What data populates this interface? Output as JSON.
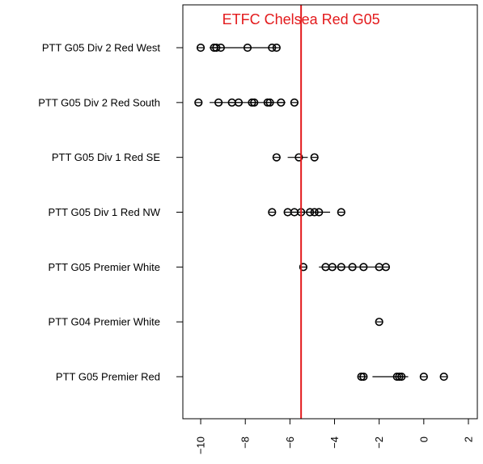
{
  "chart_data": {
    "type": "scatter",
    "title": "",
    "xlabel": "",
    "ylabel": "",
    "xlim": [
      -10.8,
      2.4
    ],
    "x_ticks": [
      -10,
      -8,
      -6,
      -4,
      -2,
      0,
      2
    ],
    "x_tick_labels": [
      "−10",
      "−8",
      "−6",
      "−4",
      "−2",
      "0",
      "2"
    ],
    "grid": false,
    "categories": [
      "PTT G05 Div 2 Red West",
      "PTT G05 Div 2 Red South",
      "PTT G05 Div 1 Red SE",
      "PTT G05 Div 1 Red NW",
      "PTT G05 Premier White",
      "PTT G04 Premier White",
      "PTT G05 Premier Red"
    ],
    "series": [
      {
        "category": "PTT G05 Div 2 Red West",
        "points": [
          -10.0,
          -9.4,
          -9.3,
          -9.1,
          -7.9,
          -6.8,
          -6.6
        ],
        "interval": [
          -9.6,
          -6.9
        ]
      },
      {
        "category": "PTT G05 Div 2 Red South",
        "points": [
          -10.1,
          -9.2,
          -8.6,
          -8.3,
          -7.7,
          -7.6,
          -7.0,
          -6.9,
          -6.4,
          -5.8
        ],
        "interval": [
          -9.6,
          -6.2
        ]
      },
      {
        "category": "PTT G05 Div 1 Red SE",
        "points": [
          -6.6,
          -5.6,
          -4.9
        ],
        "interval": [
          -6.1,
          -5.2
        ]
      },
      {
        "category": "PTT G05 Div 1 Red NW",
        "points": [
          -6.8,
          -6.1,
          -5.8,
          -5.5,
          -5.1,
          -4.9,
          -4.7,
          -3.7
        ],
        "interval": [
          -6.0,
          -4.2
        ]
      },
      {
        "category": "PTT G05 Premier White",
        "points": [
          -5.4,
          -4.4,
          -4.1,
          -3.7,
          -3.2,
          -2.7,
          -2.0,
          -1.7
        ],
        "interval": [
          -4.7,
          -1.9
        ]
      },
      {
        "category": "PTT G04 Premier White",
        "points": [
          -2.0
        ],
        "interval": [
          -2.0,
          -2.0
        ]
      },
      {
        "category": "PTT G05 Premier Red",
        "points": [
          -2.8,
          -2.7,
          -1.2,
          -1.1,
          -1.0,
          0.0,
          0.9
        ],
        "interval": [
          -2.3,
          -0.7
        ]
      }
    ],
    "reference_line": {
      "x": -5.5,
      "label": "ETFC Chelsea Red G05",
      "color": "#e31a1c"
    },
    "point_color": "#000000",
    "line_color": "#000000"
  }
}
